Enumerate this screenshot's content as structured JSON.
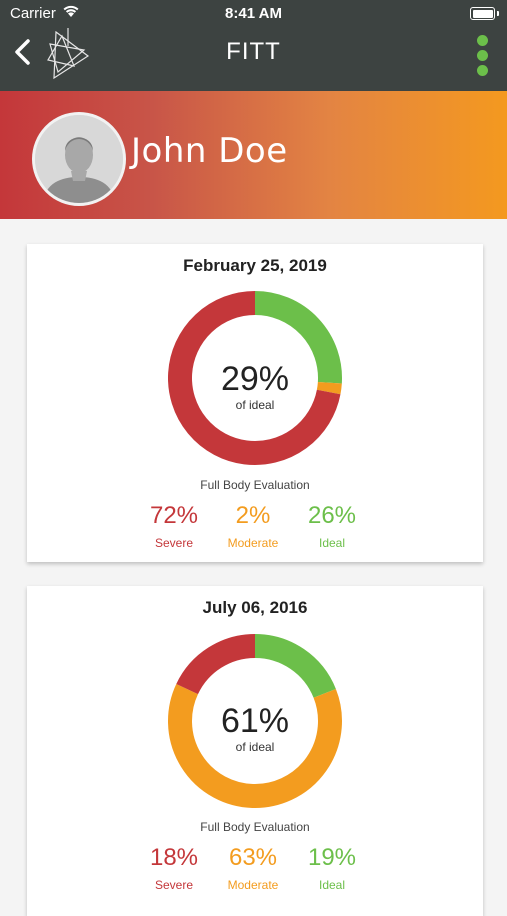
{
  "status_bar": {
    "carrier": "Carrier",
    "time": "8:41 AM"
  },
  "nav": {
    "title": "FITT",
    "back_icon": "chevron-left-icon",
    "logo_icon": "fitt-logo-icon",
    "menu_icon": "more-vertical-icon"
  },
  "profile": {
    "name": "John Doe"
  },
  "colors": {
    "severe": "#c4373a",
    "moderate": "#f39c1f",
    "ideal": "#6cbf4a",
    "nav_bg": "#3d4341"
  },
  "evaluations": [
    {
      "date": "February 25, 2019",
      "score": "29%",
      "score_label": "of ideal",
      "caption": "Full Body Evaluation",
      "severe": {
        "value": "72%",
        "label": "Severe"
      },
      "moderate": {
        "value": "2%",
        "label": "Moderate"
      },
      "ideal": {
        "value": "26%",
        "label": "Ideal"
      }
    },
    {
      "date": "July 06, 2016",
      "score": "61%",
      "score_label": "of ideal",
      "caption": "Full Body Evaluation",
      "severe": {
        "value": "18%",
        "label": "Severe"
      },
      "moderate": {
        "value": "63%",
        "label": "Moderate"
      },
      "ideal": {
        "value": "19%",
        "label": "Ideal"
      }
    }
  ],
  "chart_data": [
    {
      "type": "pie",
      "categories": [
        "Ideal",
        "Moderate",
        "Severe"
      ],
      "values": [
        26,
        2,
        72
      ],
      "title": "February 25, 2019"
    },
    {
      "type": "pie",
      "categories": [
        "Ideal",
        "Moderate",
        "Severe"
      ],
      "values": [
        19,
        63,
        18
      ],
      "title": "July 06, 2016"
    }
  ]
}
